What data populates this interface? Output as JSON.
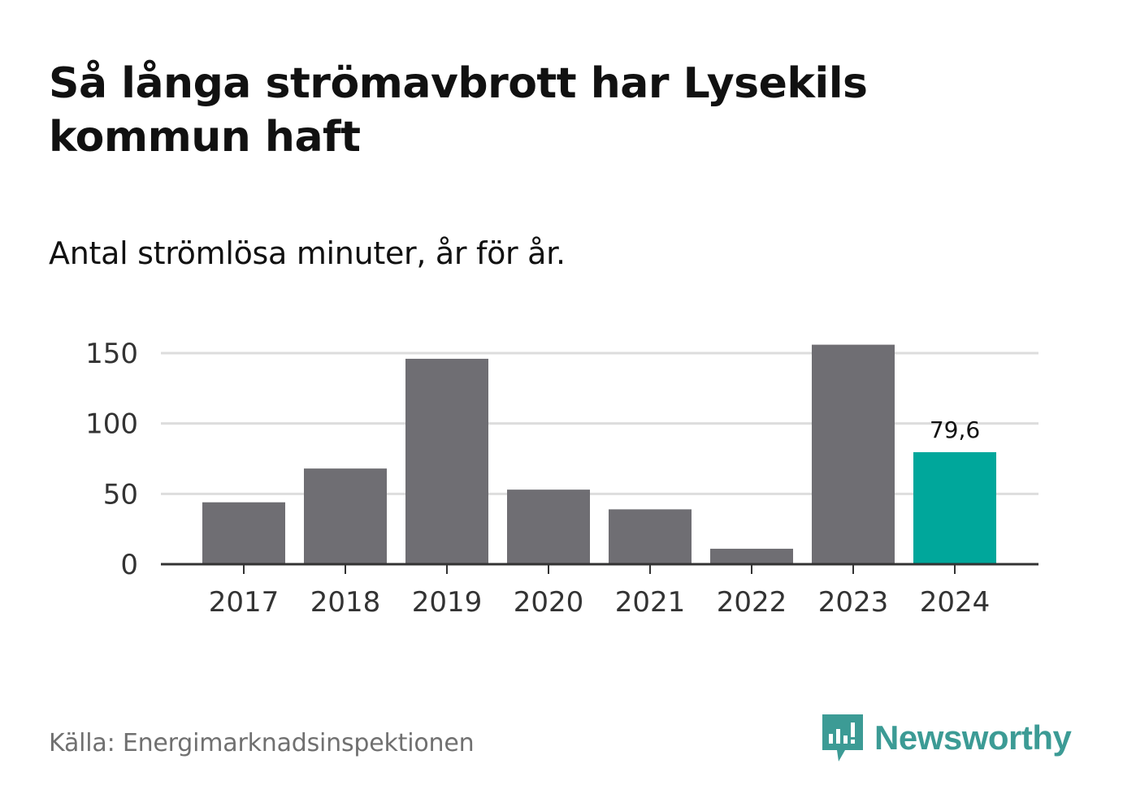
{
  "title": "Så långa strömavbrott har Lysekils kommun haft",
  "subtitle": "Antal strömlösa minuter, år för år.",
  "source": "Källa: Energimarknadsinspektionen",
  "brand": {
    "name": "Newsworthy",
    "color": "#3c9b95",
    "icon": "newsworthy-logo-icon"
  },
  "colors": {
    "bar": "#6f6e73",
    "highlight": "#00a79b",
    "grid": "#dddddd",
    "axis": "#333333"
  },
  "chart_data": {
    "type": "bar",
    "title": "Så långa strömavbrott har Lysekils kommun haft",
    "subtitle": "Antal strömlösa minuter, år för år.",
    "xlabel": "",
    "ylabel": "",
    "categories": [
      "2017",
      "2018",
      "2019",
      "2020",
      "2021",
      "2022",
      "2023",
      "2024"
    ],
    "values": [
      44,
      68,
      146,
      53,
      39,
      11,
      156,
      79.6
    ],
    "highlight_index": 7,
    "data_labels": [
      {
        "index": 7,
        "text": "79,6"
      }
    ],
    "ylim": [
      0,
      150
    ],
    "yticks": [
      0,
      50,
      100,
      150
    ],
    "grid": true,
    "legend": "none"
  }
}
